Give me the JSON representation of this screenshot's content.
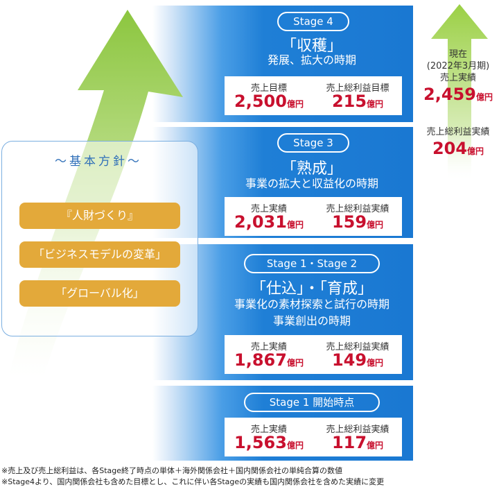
{
  "stages": [
    {
      "pill": "Stage 4",
      "title": "「収穫」",
      "subtitle": "発展、拡大の時期",
      "label1": "売上目標",
      "value1": "2,500",
      "unit1": "億円",
      "label2": "売上総利益目標",
      "value2": "215",
      "unit2": "億円"
    },
    {
      "pill": "Stage 3",
      "title": "「熟成」",
      "subtitle": "事業の拡大と収益化の時期",
      "label1": "売上実績",
      "value1": "2,031",
      "unit1": "億円",
      "label2": "売上総利益実績",
      "value2": "159",
      "unit2": "億円"
    },
    {
      "pill": "Stage 1・Stage 2",
      "title": "「仕込」・「育成」",
      "subtitle": "事業化の素材探索と試行の時期",
      "subtitle2": "事業創出の時期",
      "label1": "売上実績",
      "value1": "1,867",
      "unit1": "億円",
      "label2": "売上総利益実績",
      "value2": "149",
      "unit2": "億円"
    },
    {
      "pill": "Stage 1 開始時点",
      "label1": "売上実績",
      "value1": "1,563",
      "unit1": "億円",
      "label2": "売上総利益実績",
      "value2": "117",
      "unit2": "億円"
    }
  ],
  "policy": {
    "heading": "〜基本方針〜",
    "items": [
      "『人財づくり』",
      "「ビジネスモデルの変革」",
      "「グローバル化」"
    ]
  },
  "current": {
    "line1": "現在",
    "line2": "(2022年3月期)",
    "line3": "売上実績",
    "sales_value": "2,459",
    "sales_unit": "億円",
    "profit_label": "売上総利益実績",
    "profit_value": "204",
    "profit_unit": "億円"
  },
  "notes": [
    "※売上及び売上総利益は、各Stage終了時点の単体＋海外関係会社＋国内関係会社の単純合算の数値",
    "※Stage4より、国内関係会社も含めた目標とし、これに伴い各Stageの実績も国内関係会社を含めた実績に変更"
  ],
  "colors": {
    "band_blue": "#1a78d2",
    "value_red": "#c8102e",
    "policy_gold": "#e3a93a",
    "arrow_green": "#9bd045"
  }
}
